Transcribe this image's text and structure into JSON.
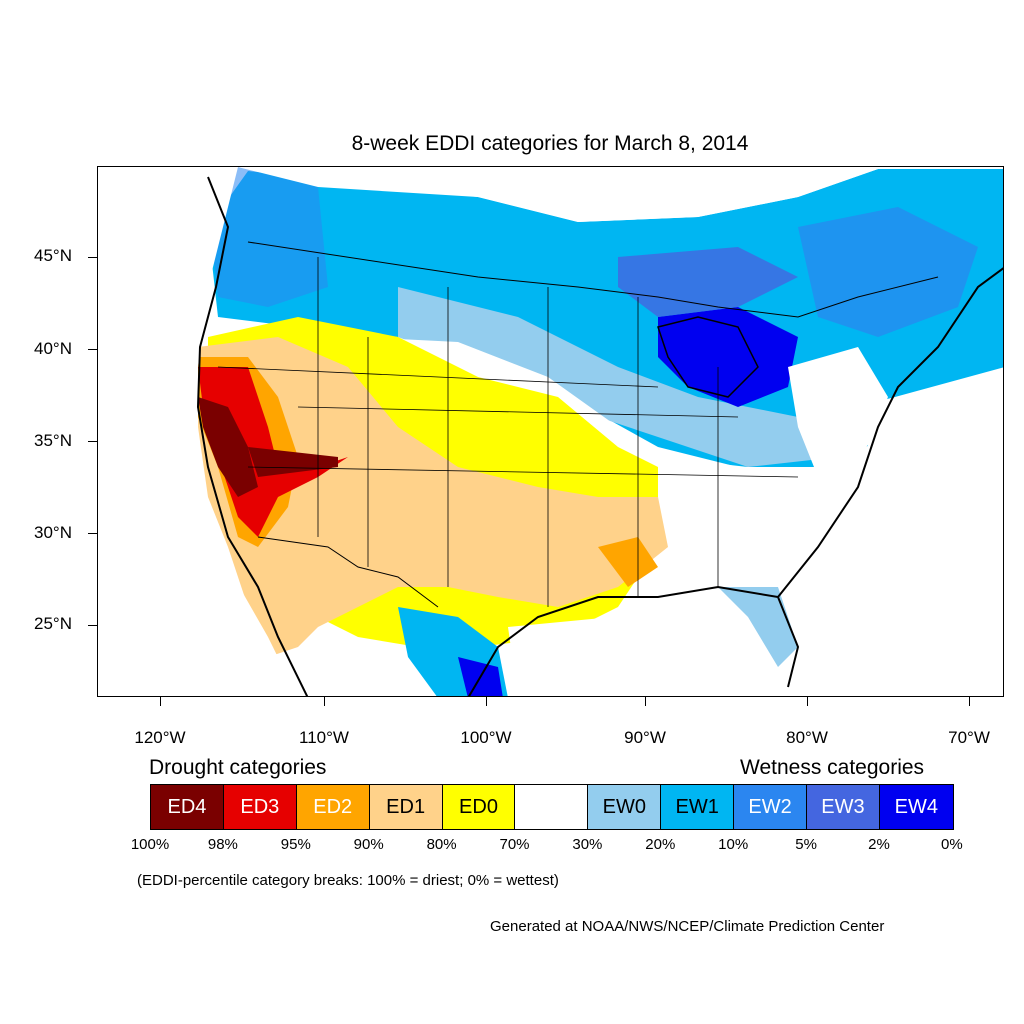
{
  "title": "8-week EDDI categories for March 8, 2014",
  "map": {
    "lat_labels": [
      "45°N",
      "40°N",
      "35°N",
      "30°N",
      "25°N"
    ],
    "lon_labels": [
      "120°W",
      "110°W",
      "100°W",
      "90°W",
      "80°W",
      "70°W"
    ],
    "background_color": "#ffffff",
    "coast_color": "#000000"
  },
  "legend": {
    "drought_heading": "Drought categories",
    "wetness_heading": "Wetness categories",
    "categories": [
      {
        "label": "ED4",
        "color": "#7a0000",
        "text_color": "#ffffff"
      },
      {
        "label": "ED3",
        "color": "#e60000",
        "text_color": "#ffffff"
      },
      {
        "label": "ED2",
        "color": "#ffa500",
        "text_color": "#ffffff"
      },
      {
        "label": "ED1",
        "color": "#ffd28a",
        "text_color": "#000000"
      },
      {
        "label": "ED0",
        "color": "#ffff00",
        "text_color": "#000000"
      },
      {
        "label": "",
        "color": "#ffffff",
        "text_color": "#000000"
      },
      {
        "label": "EW0",
        "color": "#93cdee",
        "text_color": "#000000"
      },
      {
        "label": "EW1",
        "color": "#00b6f2",
        "text_color": "#000000"
      },
      {
        "label": "EW2",
        "color": "#2b86f0",
        "text_color": "#ffffff"
      },
      {
        "label": "EW3",
        "color": "#4466e0",
        "text_color": "#ffffff"
      },
      {
        "label": "EW4",
        "color": "#0000f0",
        "text_color": "#ffffff"
      }
    ],
    "breakpoints": [
      "100%",
      "98%",
      "95%",
      "90%",
      "80%",
      "70%",
      "30%",
      "20%",
      "10%",
      "5%",
      "2%",
      "0%"
    ]
  },
  "note": "(EDDI-percentile category breaks: 100% = driest; 0% = wettest)",
  "credit": "Generated at NOAA/NWS/NCEP/Climate Prediction Center"
}
